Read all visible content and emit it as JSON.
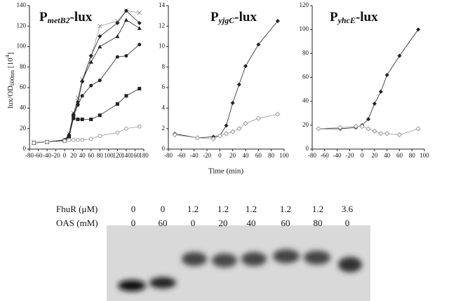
{
  "chart_data": [
    {
      "type": "line",
      "title": [
        "P",
        "metB2",
        "-lux"
      ],
      "ylabel": [
        "lux/OD",
        "600nm",
        " [10",
        "4",
        "]"
      ],
      "x": [
        -70,
        -40,
        0,
        10,
        20,
        30,
        40,
        60,
        80,
        120,
        140,
        170
      ],
      "xlim": [
        -80,
        180
      ],
      "xticks": [
        -80,
        -60,
        -40,
        -20,
        0,
        20,
        40,
        60,
        80,
        100,
        120,
        140,
        160,
        180
      ],
      "ylim": [
        0,
        140
      ],
      "yticks": [
        0,
        20,
        40,
        60,
        80,
        100,
        120,
        140
      ],
      "series": [
        {
          "color": "#999999",
          "marker": "x",
          "values": [
            7,
            7,
            9,
            15,
            35,
            50,
            68,
            90,
            120,
            125,
            135,
            133
          ]
        },
        {
          "color": "#222222",
          "marker": "diamond",
          "values": [
            6,
            7,
            9,
            14,
            34,
            46,
            66,
            91,
            110,
            123,
            135,
            123
          ]
        },
        {
          "color": "#222222",
          "marker": "triangle",
          "values": [
            6,
            7,
            9,
            13,
            34,
            45,
            67,
            85,
            100,
            110,
            126,
            118
          ]
        },
        {
          "color": "#222222",
          "marker": "circle",
          "values": [
            6,
            7,
            8,
            12,
            32,
            43,
            52,
            62,
            67,
            90,
            91,
            102
          ]
        },
        {
          "color": "#222222",
          "marker": "square",
          "values": [
            6,
            7,
            8,
            12,
            30,
            29,
            29,
            29,
            33,
            44,
            52,
            59
          ]
        },
        {
          "color": "#999999",
          "marker": "open-circle",
          "values": [
            6,
            7,
            8,
            9,
            9,
            9,
            9,
            10,
            13,
            16,
            20,
            22
          ]
        }
      ]
    },
    {
      "type": "line",
      "title": [
        "P",
        "yjgC",
        "-lux"
      ],
      "xlabel": "Time (min)",
      "x": [
        -70,
        -35,
        -10,
        0,
        10,
        20,
        30,
        40,
        60,
        90
      ],
      "xlim": [
        -80,
        100
      ],
      "xticks": [
        -80,
        -60,
        -40,
        -20,
        0,
        20,
        40,
        60,
        80,
        100
      ],
      "ylim": [
        0,
        14
      ],
      "yticks": [
        0,
        2,
        4,
        6,
        8,
        10,
        12,
        14
      ],
      "series": [
        {
          "color": "#222222",
          "marker": "diamond",
          "values": [
            1.5,
            1.1,
            1.2,
            1.3,
            2.3,
            4.5,
            6.3,
            8.1,
            10.2,
            12.5
          ]
        },
        {
          "color": "#999999",
          "marker": "open-diamond",
          "values": [
            1.4,
            1.1,
            1.0,
            1.3,
            1.5,
            1.7,
            2.0,
            2.5,
            3.0,
            3.4
          ]
        }
      ]
    },
    {
      "type": "line",
      "title": [
        "P",
        "yhcE",
        "-lux"
      ],
      "x": [
        -70,
        -35,
        -10,
        0,
        10,
        20,
        30,
        40,
        60,
        90
      ],
      "xlim": [
        -80,
        100
      ],
      "xticks": [
        -80,
        -60,
        -40,
        -20,
        0,
        20,
        40,
        60,
        80,
        100
      ],
      "ylim": [
        0,
        120
      ],
      "yticks": [
        0,
        20,
        40,
        60,
        80,
        100,
        120
      ],
      "series": [
        {
          "color": "#222222",
          "marker": "diamond",
          "values": [
            17,
            17,
            18,
            20,
            25,
            38,
            48,
            62,
            78,
            100
          ]
        },
        {
          "color": "#999999",
          "marker": "open-diamond",
          "values": [
            17,
            18,
            19,
            19,
            17,
            15,
            13,
            13,
            12,
            17
          ]
        }
      ]
    }
  ],
  "gel": {
    "row_labels": [
      "FhuR (μM)",
      "OAS (mM)"
    ],
    "rows": [
      [
        "0",
        "0",
        "1.2",
        "1.2",
        "1.2",
        "1.2",
        "1.2",
        "3.6"
      ],
      [
        "0",
        "60",
        "0",
        "20",
        "40",
        "60",
        "80",
        "0"
      ]
    ]
  }
}
